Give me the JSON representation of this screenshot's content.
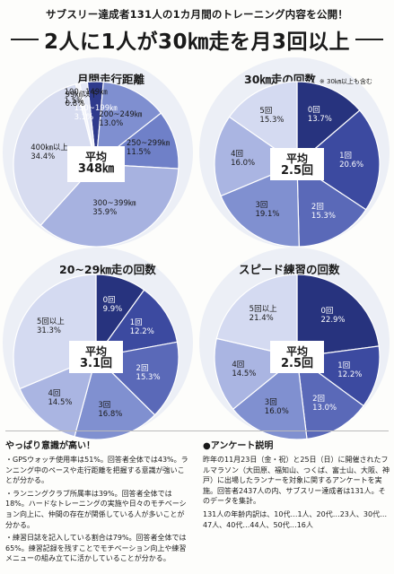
{
  "header": {
    "subtitle": "サブスリー達成者131人の1カ月間のトレーニング内容を公開！",
    "title": "2人に1人が30㎞走を月3回以上"
  },
  "chart_data": [
    {
      "type": "pie",
      "title": "月間走行距離",
      "center": [
        "平均",
        "348㎞"
      ],
      "slices": [
        {
          "label": "150~199㎞",
          "value": 3.1,
          "text": "3.1%",
          "color": "#2e3a8c"
        },
        {
          "label": "200~249㎞",
          "value": 13.0,
          "text": "13.0%",
          "color": "#7f8fd0"
        },
        {
          "label": "250~299㎞",
          "value": 11.5,
          "text": "11.5%",
          "color": "#6f80c8"
        },
        {
          "label": "300~399㎞",
          "value": 35.9,
          "text": "35.9%",
          "color": "#a7b2e0"
        },
        {
          "label": "400㎞以上",
          "value": 34.4,
          "text": "34.4%",
          "color": "#d7dcf0"
        },
        {
          "label": "99㎞以下",
          "value": 0.8,
          "text": "0.8%",
          "color": "#f4f5fb"
        },
        {
          "label": "100~149㎞",
          "value": 1.5,
          "text": "1.5%",
          "color": "#e6e9f6"
        }
      ]
    },
    {
      "type": "pie",
      "title": "30㎞走の回数",
      "note": "※ 30㎞以上も含む",
      "center": [
        "平均",
        "2.5回"
      ],
      "slices": [
        {
          "label": "0回",
          "value": 13.7,
          "text": "13.7%",
          "color": "#27337e"
        },
        {
          "label": "1回",
          "value": 20.6,
          "text": "20.6%",
          "color": "#3c4aa0"
        },
        {
          "label": "2回",
          "value": 15.3,
          "text": "15.3%",
          "color": "#5a69b8"
        },
        {
          "label": "3回",
          "value": 19.1,
          "text": "19.1%",
          "color": "#8090d0"
        },
        {
          "label": "4回",
          "value": 16.0,
          "text": "16.0%",
          "color": "#aab5e2"
        },
        {
          "label": "5回",
          "value": 15.3,
          "text": "15.3%",
          "color": "#d4daf1"
        }
      ]
    },
    {
      "type": "pie",
      "title": "20~29㎞走の回数",
      "center": [
        "平均",
        "3.1回"
      ],
      "slices": [
        {
          "label": "0回",
          "value": 9.9,
          "text": "9.9%",
          "color": "#27337e"
        },
        {
          "label": "1回",
          "value": 12.2,
          "text": "12.2%",
          "color": "#3c4aa0"
        },
        {
          "label": "2回",
          "value": 15.3,
          "text": "15.3%",
          "color": "#5a69b8"
        },
        {
          "label": "3回",
          "value": 16.8,
          "text": "16.8%",
          "color": "#8090d0"
        },
        {
          "label": "4回",
          "value": 14.5,
          "text": "14.5%",
          "color": "#aab5e2"
        },
        {
          "label": "5回以上",
          "value": 31.3,
          "text": "31.3%",
          "color": "#d4daf1"
        }
      ]
    },
    {
      "type": "pie",
      "title": "スピード練習の回数",
      "center": [
        "平均",
        "2.5回"
      ],
      "slices": [
        {
          "label": "0回",
          "value": 22.9,
          "text": "22.9%",
          "color": "#27337e"
        },
        {
          "label": "1回",
          "value": 12.2,
          "text": "12.2%",
          "color": "#3c4aa0"
        },
        {
          "label": "2回",
          "value": 13.0,
          "text": "13.0%",
          "color": "#5a69b8"
        },
        {
          "label": "3回",
          "value": 16.0,
          "text": "16.0%",
          "color": "#8090d0"
        },
        {
          "label": "4回",
          "value": 14.5,
          "text": "14.5%",
          "color": "#aab5e2"
        },
        {
          "label": "5回以上",
          "value": 21.4,
          "text": "21.4%",
          "color": "#d4daf1"
        }
      ]
    }
  ],
  "left_column": {
    "heading": "やっぱり意識が高い！",
    "paragraphs": [
      "・GPSウォッチ使用率は51%。回答者全体では43%。ランニング中のペースや走行距離を把握する意識が強いことが分かる。",
      "・ランニングクラブ所属率は39%。回答者全体では18%。ハードなトレーニングの実施や日々のモチベーション向上に、仲間の存在が関係している人が多いことが分かる。",
      "・練習日誌を記入している割合は79%。回答者全体では65%。練習記録を残すことでモチベーション向上や練習メニューの組み立てに活かしていることが分かる。"
    ]
  },
  "right_column": {
    "heading": "●アンケート説明",
    "paragraphs": [
      "昨年の11月23日（金・祝）と25日（日）に開催されたフルマラソン（大田原、福知山、つくば、富士山、大阪、神戸）に出場したランナーを対象に関するアンケートを実施。回答者2437人の内、サブスリー達成者は131人。そのデータを集計。",
      "131人の年齢内訳は、10代…1人、20代…23人、30代…47人、40代…44人、50代…16人"
    ]
  }
}
